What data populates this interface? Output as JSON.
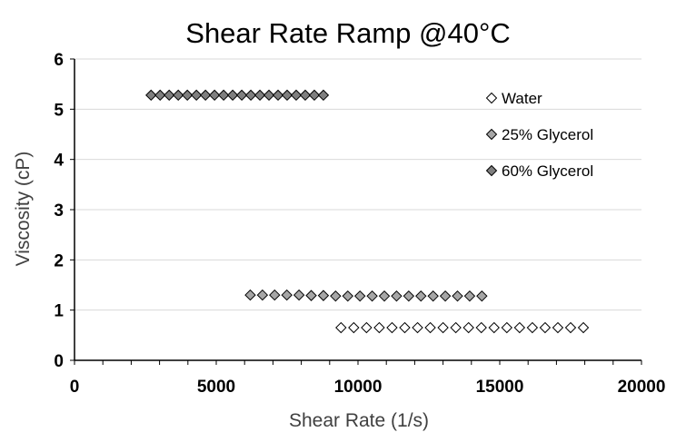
{
  "chart_data": {
    "type": "scatter",
    "title": "Shear Rate Ramp @40°C",
    "xlabel": "Shear Rate (1/s)",
    "ylabel": "Viscosity (cP)",
    "xlim": [
      0,
      20000
    ],
    "ylim": [
      0,
      6
    ],
    "x_ticks": [
      0,
      5000,
      10000,
      15000,
      20000
    ],
    "y_ticks": [
      0,
      1,
      2,
      3,
      4,
      5,
      6
    ],
    "x_minor_step": 1000,
    "grid": "horizontal",
    "legend_position": "right",
    "series": [
      {
        "name": "Water",
        "marker": "diamond",
        "color": "#ffffff",
        "x": [
          9400,
          9850,
          10300,
          10750,
          11200,
          11650,
          12100,
          12550,
          13000,
          13450,
          13900,
          14350,
          14800,
          15250,
          15700,
          16150,
          16600,
          17050,
          17500,
          17950
        ],
        "y": [
          0.65,
          0.65,
          0.65,
          0.65,
          0.65,
          0.65,
          0.65,
          0.65,
          0.65,
          0.65,
          0.65,
          0.65,
          0.65,
          0.65,
          0.65,
          0.65,
          0.65,
          0.65,
          0.65,
          0.65
        ]
      },
      {
        "name": "25% Glycerol",
        "marker": "diamond",
        "color": "#a6a6a6",
        "x": [
          6200,
          6630,
          7060,
          7490,
          7920,
          8350,
          8780,
          9210,
          9640,
          10070,
          10500,
          10930,
          11360,
          11790,
          12220,
          12650,
          13080,
          13510,
          13940,
          14370
        ],
        "y": [
          1.3,
          1.3,
          1.3,
          1.3,
          1.3,
          1.29,
          1.29,
          1.28,
          1.28,
          1.28,
          1.28,
          1.28,
          1.28,
          1.28,
          1.28,
          1.28,
          1.28,
          1.28,
          1.28,
          1.28
        ]
      },
      {
        "name": "60% Glycerol",
        "marker": "diamond",
        "color": "#7f7f7f",
        "x": [
          2700,
          3020,
          3340,
          3660,
          3980,
          4300,
          4620,
          4940,
          5260,
          5580,
          5900,
          6220,
          6540,
          6860,
          7180,
          7500,
          7820,
          8140,
          8460,
          8780
        ],
        "y": [
          5.28,
          5.28,
          5.28,
          5.28,
          5.28,
          5.28,
          5.28,
          5.28,
          5.28,
          5.28,
          5.28,
          5.28,
          5.28,
          5.28,
          5.28,
          5.28,
          5.28,
          5.28,
          5.28,
          5.28
        ]
      }
    ]
  }
}
